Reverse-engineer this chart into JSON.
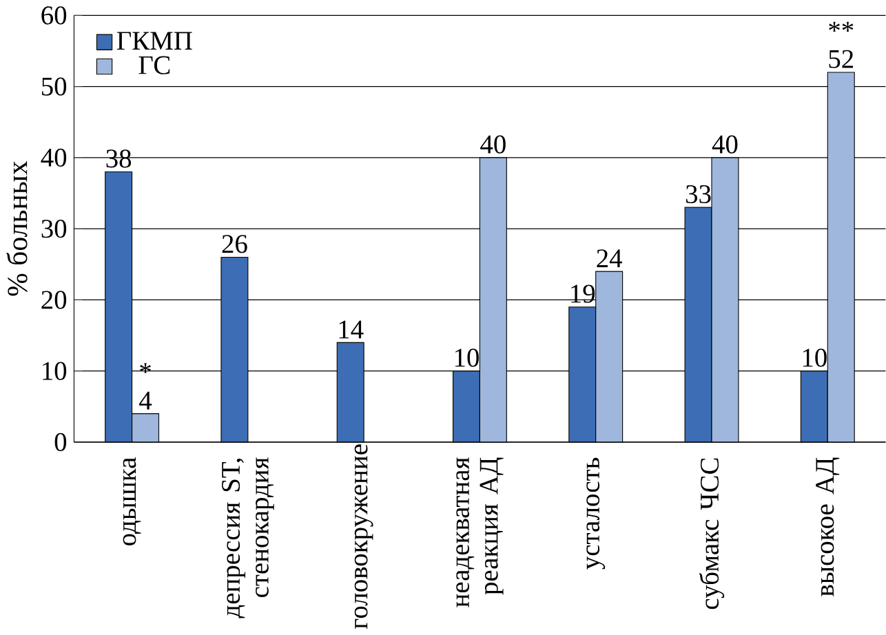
{
  "chart_data": {
    "type": "bar",
    "ylabel": "% больных",
    "categories": [
      "одышка",
      "депрессия ST, стенокардия",
      "головокружение",
      "неадекватная реакция АД",
      "усталость",
      "субмакс ЧСС",
      "высокое АД"
    ],
    "series": [
      {
        "name": "ГКМП",
        "color": "#3d6db4",
        "values": [
          38,
          26,
          14,
          10,
          19,
          33,
          10
        ],
        "value_labels": [
          "38",
          "26",
          "14",
          "10",
          "19",
          "33",
          "10"
        ]
      },
      {
        "name": "ГС",
        "color": "#9fb7dd",
        "values": [
          4,
          null,
          null,
          40,
          24,
          40,
          52
        ],
        "value_labels": [
          "4",
          null,
          null,
          "40",
          "24",
          "40",
          "52"
        ]
      }
    ],
    "ylim": [
      0,
      60
    ],
    "yticks": [
      0,
      10,
      20,
      30,
      40,
      50,
      60
    ],
    "grid": "y",
    "legend": "top left",
    "annotations": [
      {
        "text": "*",
        "x": "одышка",
        "y": 4
      },
      {
        "text": "**",
        "x": "высокое АД",
        "y": 52
      }
    ]
  }
}
